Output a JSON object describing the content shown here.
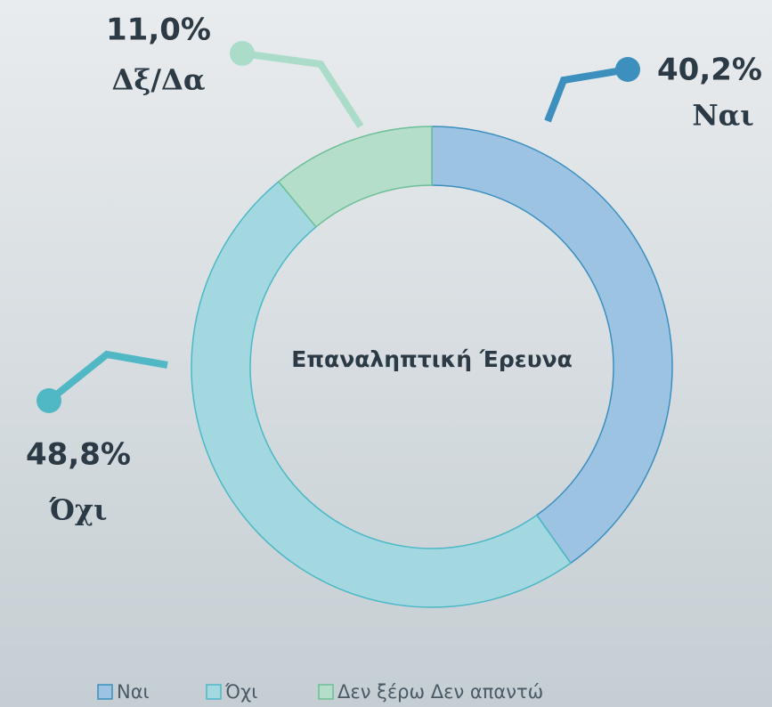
{
  "chart_data": {
    "type": "donut",
    "center_label": "Επαναληπτική Έρευνα",
    "categories": [
      "Ναι",
      "Όχι",
      "Δεν ξέρω Δεν απαντώ"
    ],
    "callout_labels": [
      "Ναι",
      "Όχι",
      "Δξ/Δα"
    ],
    "values": [
      40.2,
      48.8,
      11.0
    ],
    "value_labels": [
      "40,2%",
      "48,8%",
      "11,0%"
    ],
    "colors": [
      "#9cc3e2",
      "#a3d8e0",
      "#b4dec9"
    ],
    "stroke_colors": [
      "#3a8fc0",
      "#4ab8c6",
      "#6cbf98"
    ],
    "callout_colors": [
      "#3d8fbd",
      "#50b7c5",
      "#abdcc9"
    ],
    "legend": "bottom"
  }
}
